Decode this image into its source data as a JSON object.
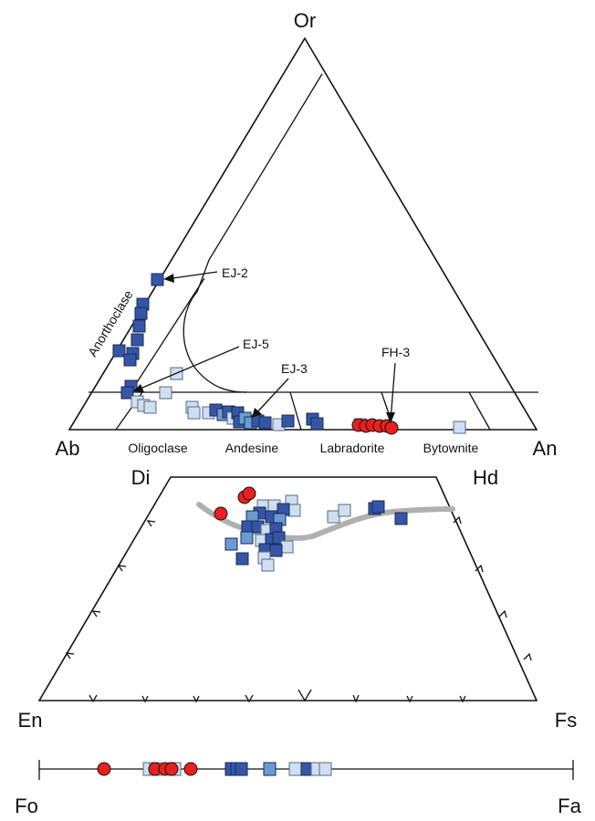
{
  "feldspar_ternary": {
    "vertices": {
      "top": "Or",
      "left": "Ab",
      "right": "An"
    },
    "fields": [
      "Oligoclase",
      "Andesine",
      "Labradorite",
      "Bytownite"
    ],
    "edge_label": "Anorthoclase",
    "annotations": [
      "EJ-2",
      "EJ-5",
      "EJ-3",
      "FH-3"
    ]
  },
  "pyroxene_quad": {
    "vertices": {
      "top_left": "Di",
      "top_right": "Hd",
      "bottom_left": "En",
      "bottom_right": "Fs"
    }
  },
  "olivine_line": {
    "ends": {
      "left": "Fo",
      "right": "Fa"
    }
  },
  "colors": {
    "red_circle": "#e8211f",
    "dark_square": "#3556a6",
    "mid_square": "#6b9bd2",
    "light_square": "#cfdff1",
    "trend_line": "#b0b0b0"
  }
}
